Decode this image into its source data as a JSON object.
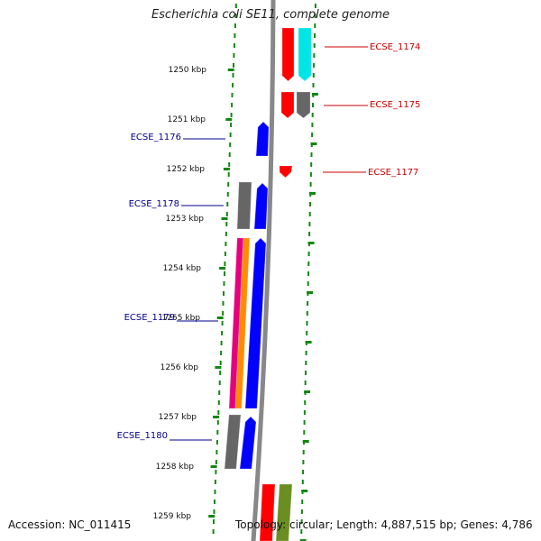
{
  "title": "Escherichia coli SE11, complete genome",
  "footer": {
    "accession": "Accession: NC_011415",
    "topology": "Topology: circular; Length: 4,887,515 bp; Genes: 4,786"
  },
  "colors": {
    "backbone": "#888888",
    "tick": "#118811",
    "label_left": "#00008b",
    "label_right": "#cc0000"
  },
  "scale_labels": [
    "1250 kbp",
    "1251 kbp",
    "1252 kbp",
    "1253 kbp",
    "1254 kbp",
    "1255 kbp",
    "1256 kbp",
    "1257 kbp",
    "1258 kbp",
    "1259 kbp"
  ],
  "gene_labels": [
    {
      "text": "ECSE_1174",
      "side": "right"
    },
    {
      "text": "ECSE_1175",
      "side": "right"
    },
    {
      "text": "ECSE_1176",
      "side": "left"
    },
    {
      "text": "ECSE_1177",
      "side": "right"
    },
    {
      "text": "ECSE_1178",
      "side": "left"
    },
    {
      "text": "ECSE_1179",
      "side": "left"
    },
    {
      "text": "ECSE_1180",
      "side": "left"
    }
  ],
  "features": [
    {
      "gene": "ECSE_1174",
      "strand": "reverse",
      "color": "#ff0000"
    },
    {
      "gene": "ECSE_1174",
      "strand": "reverse",
      "color": "#00e5e5"
    },
    {
      "gene": "ECSE_1175",
      "strand": "reverse",
      "color": "#ff0000"
    },
    {
      "gene": "ECSE_1175",
      "strand": "reverse",
      "color": "#666666"
    },
    {
      "gene": "ECSE_1176",
      "strand": "forward",
      "color": "#0000ff"
    },
    {
      "gene": "ECSE_1177",
      "strand": "reverse",
      "color": "#ff0000"
    },
    {
      "gene": "ECSE_1178",
      "strand": "forward",
      "color": "#666666"
    },
    {
      "gene": "ECSE_1178",
      "strand": "forward",
      "color": "#0000ff"
    },
    {
      "gene": "ECSE_1179",
      "strand": "forward",
      "color": "#e6007e"
    },
    {
      "gene": "ECSE_1179",
      "strand": "forward",
      "color": "#ff8c00"
    },
    {
      "gene": "ECSE_1179",
      "strand": "forward",
      "color": "#0000ff"
    },
    {
      "gene": "ECSE_1180",
      "strand": "forward",
      "color": "#666666"
    },
    {
      "gene": "ECSE_1180",
      "strand": "forward",
      "color": "#0000ff"
    },
    {
      "gene": "",
      "strand": "reverse",
      "color": "#ff0000"
    },
    {
      "gene": "",
      "strand": "reverse",
      "color": "#6b8e23"
    }
  ]
}
